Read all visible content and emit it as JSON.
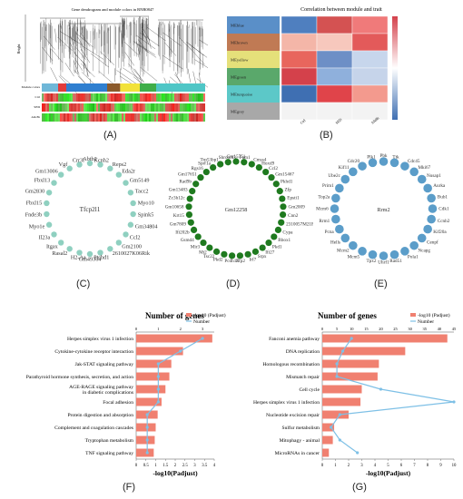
{
  "labels": {
    "A": "(A)",
    "B": "(B)",
    "C": "(C)",
    "D": "(D)",
    "E": "(E)",
    "F": "(F)",
    "G": "(G)"
  },
  "panel_a": {
    "title": "Gene dendrogram and module colors in RNB0847",
    "ylabel": "Height",
    "bar_labels": [
      "Module colors",
      "Ctrl",
      "SED",
      "Alk 8h"
    ]
  },
  "panel_b": {
    "title": "Correlation between module and trait",
    "modules": [
      {
        "name": "MEblue",
        "color": "#5a8fc8"
      },
      {
        "name": "MEbrown",
        "color": "#c07a54"
      },
      {
        "name": "MEyellow",
        "color": "#e5e07a"
      },
      {
        "name": "MEgreen",
        "color": "#5aa86b"
      },
      {
        "name": "MEturquoise",
        "color": "#5cc8c8"
      },
      {
        "name": "MEgrey",
        "color": "#a8a8a8"
      }
    ],
    "traits": [
      "Ctrl",
      "SED",
      "Alk8h"
    ]
  },
  "panel_c": {
    "center": "Tfcp2l1",
    "color": "#8fd0c0",
    "nodes": [
      "Abtb2",
      "Kcnh2",
      "Reps2",
      "Eda2r",
      "Gm5149",
      "Tacc2",
      "Myo10",
      "Spink5",
      "Gm34804",
      "Ccl2",
      "Gm2100",
      "2610027K06Rik",
      "Ptchd1",
      "Gm49364",
      "H2-Aa",
      "Rasal2",
      "Itgax",
      "Il23a",
      "Myo1e",
      "Fnde3b",
      "Fbxl15",
      "Gm2830",
      "Fbxl13",
      "Gm13006",
      "Vgf",
      "Crr3l"
    ]
  },
  "panel_d": {
    "center": "Gm12258",
    "color": "#1f7a1f",
    "nodes": [
      "Gm15751",
      "Fam1",
      "Cmss4",
      "Hoxd9",
      "Ccl2",
      "Gm15467",
      "Pkhd1",
      "Zfp",
      "Epsti1",
      "Gm2009",
      "Cnn2",
      "2310057M21Rik",
      "Cypa",
      "Bbox1",
      "Pkd1",
      "Ifi27",
      "Srpx",
      "Irf7",
      "Zfp2",
      "Pcdh18",
      "Pkd2",
      "Tsc22",
      "Mt2",
      "Mir3",
      "Gsmd4",
      "Ifi202b",
      "Gm7809",
      "Krt15",
      "Gm10658",
      "Zc3h12c",
      "Gm13483",
      "Rad9b",
      "Gm17651",
      "Rgs16",
      "Sprr1a",
      "Trp53bp1",
      "Shroom3"
    ]
  },
  "panel_e": {
    "center": "Rrm2",
    "color": "#5b9dc9",
    "nodes": [
      "Pbk",
      "Ttk",
      "Cdc45",
      "Mki67",
      "Nusap1",
      "Aurka",
      "Bub1",
      "Cdk1",
      "Ccnb2",
      "Kif20a",
      "Cenpf",
      "Ncapg",
      "Pola1",
      "Rad51",
      "Uhrf1",
      "Tpx2",
      "Mcm5",
      "Mcm2",
      "Hells",
      "Pcna",
      "Rrm1",
      "Mcm6",
      "Top2a",
      "Prim1",
      "Ube2c",
      "Kif11",
      "Cdc20",
      "Plk1"
    ]
  },
  "chart_data": [
    {
      "type": "bar",
      "title": "Number of genes",
      "legend": [
        "-log10 (Padjust)",
        "Number"
      ],
      "xlabel": "-log10(Padjust)",
      "xlim": [
        0,
        4
      ],
      "xticks": [
        "0",
        "0.5",
        "1",
        "1.5",
        "2",
        "2.5",
        "3",
        "3.5",
        "4"
      ],
      "top_ticks": [
        "0",
        "1",
        "2",
        "3"
      ],
      "categories": [
        "Herpes simplex virus 1 infection",
        "Cytokine-cytokine receptor interaction",
        "Jak-STAT signaling pathway",
        "Parathyroid hormone synthesis, secretion, and action",
        "AGE-RAGE signaling pathway\nin diabetic complications",
        "Focal adhesion",
        "Protein digestion and absorption",
        "Complement and coagulation cascades",
        "Tryptophan metabolism",
        "TNF signaling pathway"
      ],
      "values": [
        3.9,
        2.4,
        1.8,
        1.7,
        1.5,
        1.3,
        1.1,
        1.0,
        0.95,
        0.9
      ],
      "number_values": [
        3,
        2,
        1,
        1,
        1,
        1,
        0.5,
        0.5,
        0.5,
        0.5
      ],
      "top_max": 3,
      "bar_color": "#f08070",
      "line_color": "#7ec0e6"
    },
    {
      "type": "bar",
      "title": "Number of genes",
      "legend": [
        "-log10 (Padjust)",
        "Number"
      ],
      "xlabel": "-log10(Padjust)",
      "xlim": [
        0,
        10
      ],
      "xticks": [
        "0",
        "1",
        "2",
        "3",
        "4",
        "5",
        "6",
        "7",
        "8",
        "9",
        "10"
      ],
      "top_ticks": [
        "0",
        "5",
        "10",
        "15",
        "20",
        "25",
        "30",
        "35",
        "40",
        "45"
      ],
      "categories": [
        "Fanconi anemia pathway",
        "DNA replication",
        "Homologous recombination",
        "Mismatch repair",
        "Cell cycle",
        "Herpes simplex virus 1 infection",
        "Nucleotide excision repair",
        "Sulfur metabolism",
        "Mitophagy - animal",
        "MicroRNAs in cancer"
      ],
      "values": [
        9.5,
        6.3,
        4.3,
        4.2,
        3.0,
        2.9,
        2.0,
        0.9,
        0.8,
        0.5
      ],
      "number_values": [
        10,
        7,
        5,
        5,
        20,
        45,
        6,
        3,
        6,
        12
      ],
      "top_max": 45,
      "bar_color": "#f08070",
      "line_color": "#7ec0e6"
    }
  ]
}
